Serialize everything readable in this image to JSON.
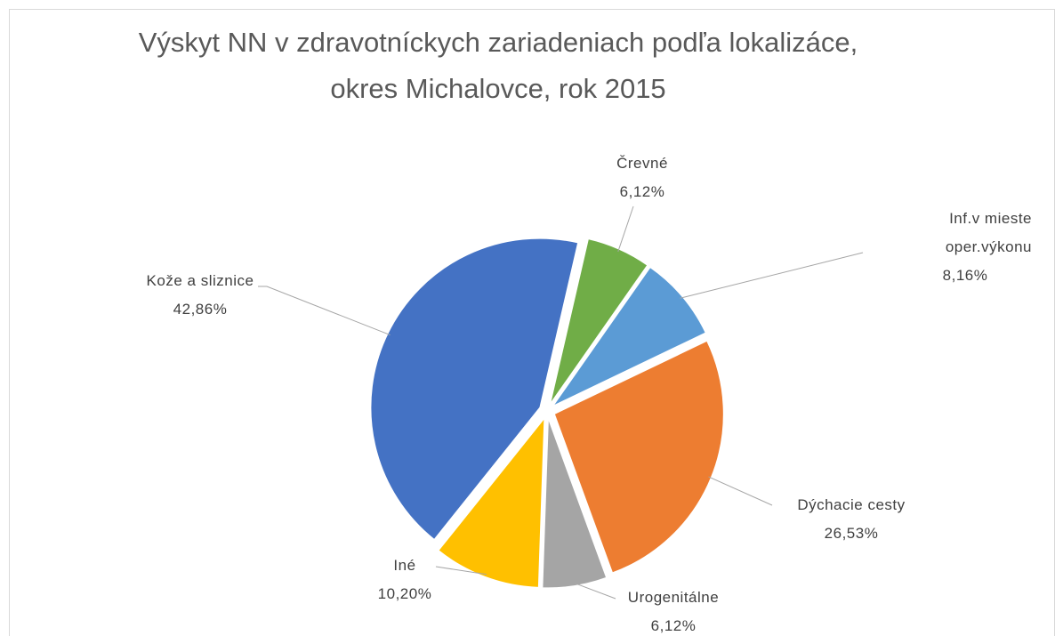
{
  "chart_data": {
    "type": "pie",
    "title": [
      "Výskyt NN v zdravotníckych zariadeniach podľa lokalizáce,",
      "okres Michalovce, rok 2015"
    ],
    "categories": [
      "Črevné",
      "Inf.v mieste oper.výkonu",
      "Dýchacie cesty",
      "Urogenitálne",
      "Iné",
      "Kože a sliznice"
    ],
    "values": [
      6.12,
      8.16,
      26.53,
      6.12,
      10.2,
      42.86
    ],
    "value_labels": [
      "6,12%",
      "8,16%",
      "26,53%",
      "6,12%",
      "10,20%",
      "42,86%"
    ],
    "colors": [
      "#70ad47",
      "#5b9bd5",
      "#ed7d31",
      "#a5a5a5",
      "#ffc000",
      "#4472c4"
    ]
  }
}
